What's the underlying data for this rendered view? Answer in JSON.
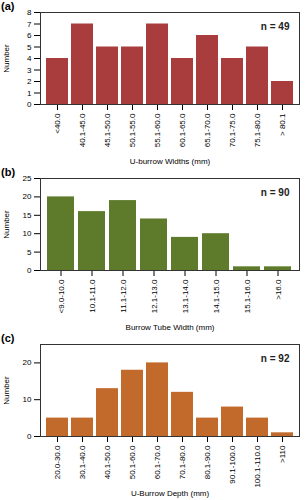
{
  "chart_data": [
    {
      "type": "bar",
      "title": "(a)",
      "annotations": [
        "n = 49"
      ],
      "x_label": "U-burrow Widths (mm)",
      "y_label": "Number",
      "categories": [
        "<40.0",
        "40.1-45.0",
        "45.1-50.0",
        "50.1-55.0",
        "55.1-60.0",
        "60.1-65.0",
        "65.1-70.0",
        "70.1-75.0",
        "75.1-80.0",
        "> 80.1"
      ],
      "values": [
        4,
        7,
        5,
        5,
        7,
        4,
        6,
        4,
        5,
        2
      ],
      "color": "#a93c3c",
      "ylim": [
        0,
        8
      ],
      "yticks": [
        0,
        1,
        2,
        3,
        4,
        5,
        6,
        7,
        8
      ],
      "grid": false
    },
    {
      "type": "bar",
      "title": "(b)",
      "annotations": [
        "n = 90"
      ],
      "x_label": "Burrow Tube Width (mm)",
      "y_label": "Number",
      "categories": [
        "<9.0-10.0",
        "10.1-11.0",
        "11.1-12.0",
        "12.1-13.0",
        "13.1-14.0",
        "14.1-15.0",
        "15.1-16.0",
        ">16.0"
      ],
      "values": [
        20,
        16,
        19,
        14,
        9,
        10,
        1,
        1
      ],
      "color": "#5e7b2c",
      "ylim": [
        0,
        25
      ],
      "yticks": [
        0,
        5,
        10,
        15,
        20,
        25
      ],
      "grid": false
    },
    {
      "type": "bar",
      "title": "(c)",
      "annotations": [
        "n = 92"
      ],
      "x_label": "U-Burrow Depth (mm)",
      "y_label": "Number",
      "categories": [
        "20.0-30.0",
        "30.1-40.0",
        "40.1-50.0",
        "50.1-60.0",
        "60.1-70.0",
        "70.1-80.0",
        "80.1-90.0",
        "90.1-100.0",
        "100.1-110.0",
        ">110"
      ],
      "values": [
        5,
        5,
        13,
        18,
        20,
        12,
        5,
        8,
        5,
        1
      ],
      "color": "#c2692c",
      "ylim": [
        0,
        25
      ],
      "yticks": [
        0,
        10,
        20
      ],
      "grid": false
    }
  ]
}
